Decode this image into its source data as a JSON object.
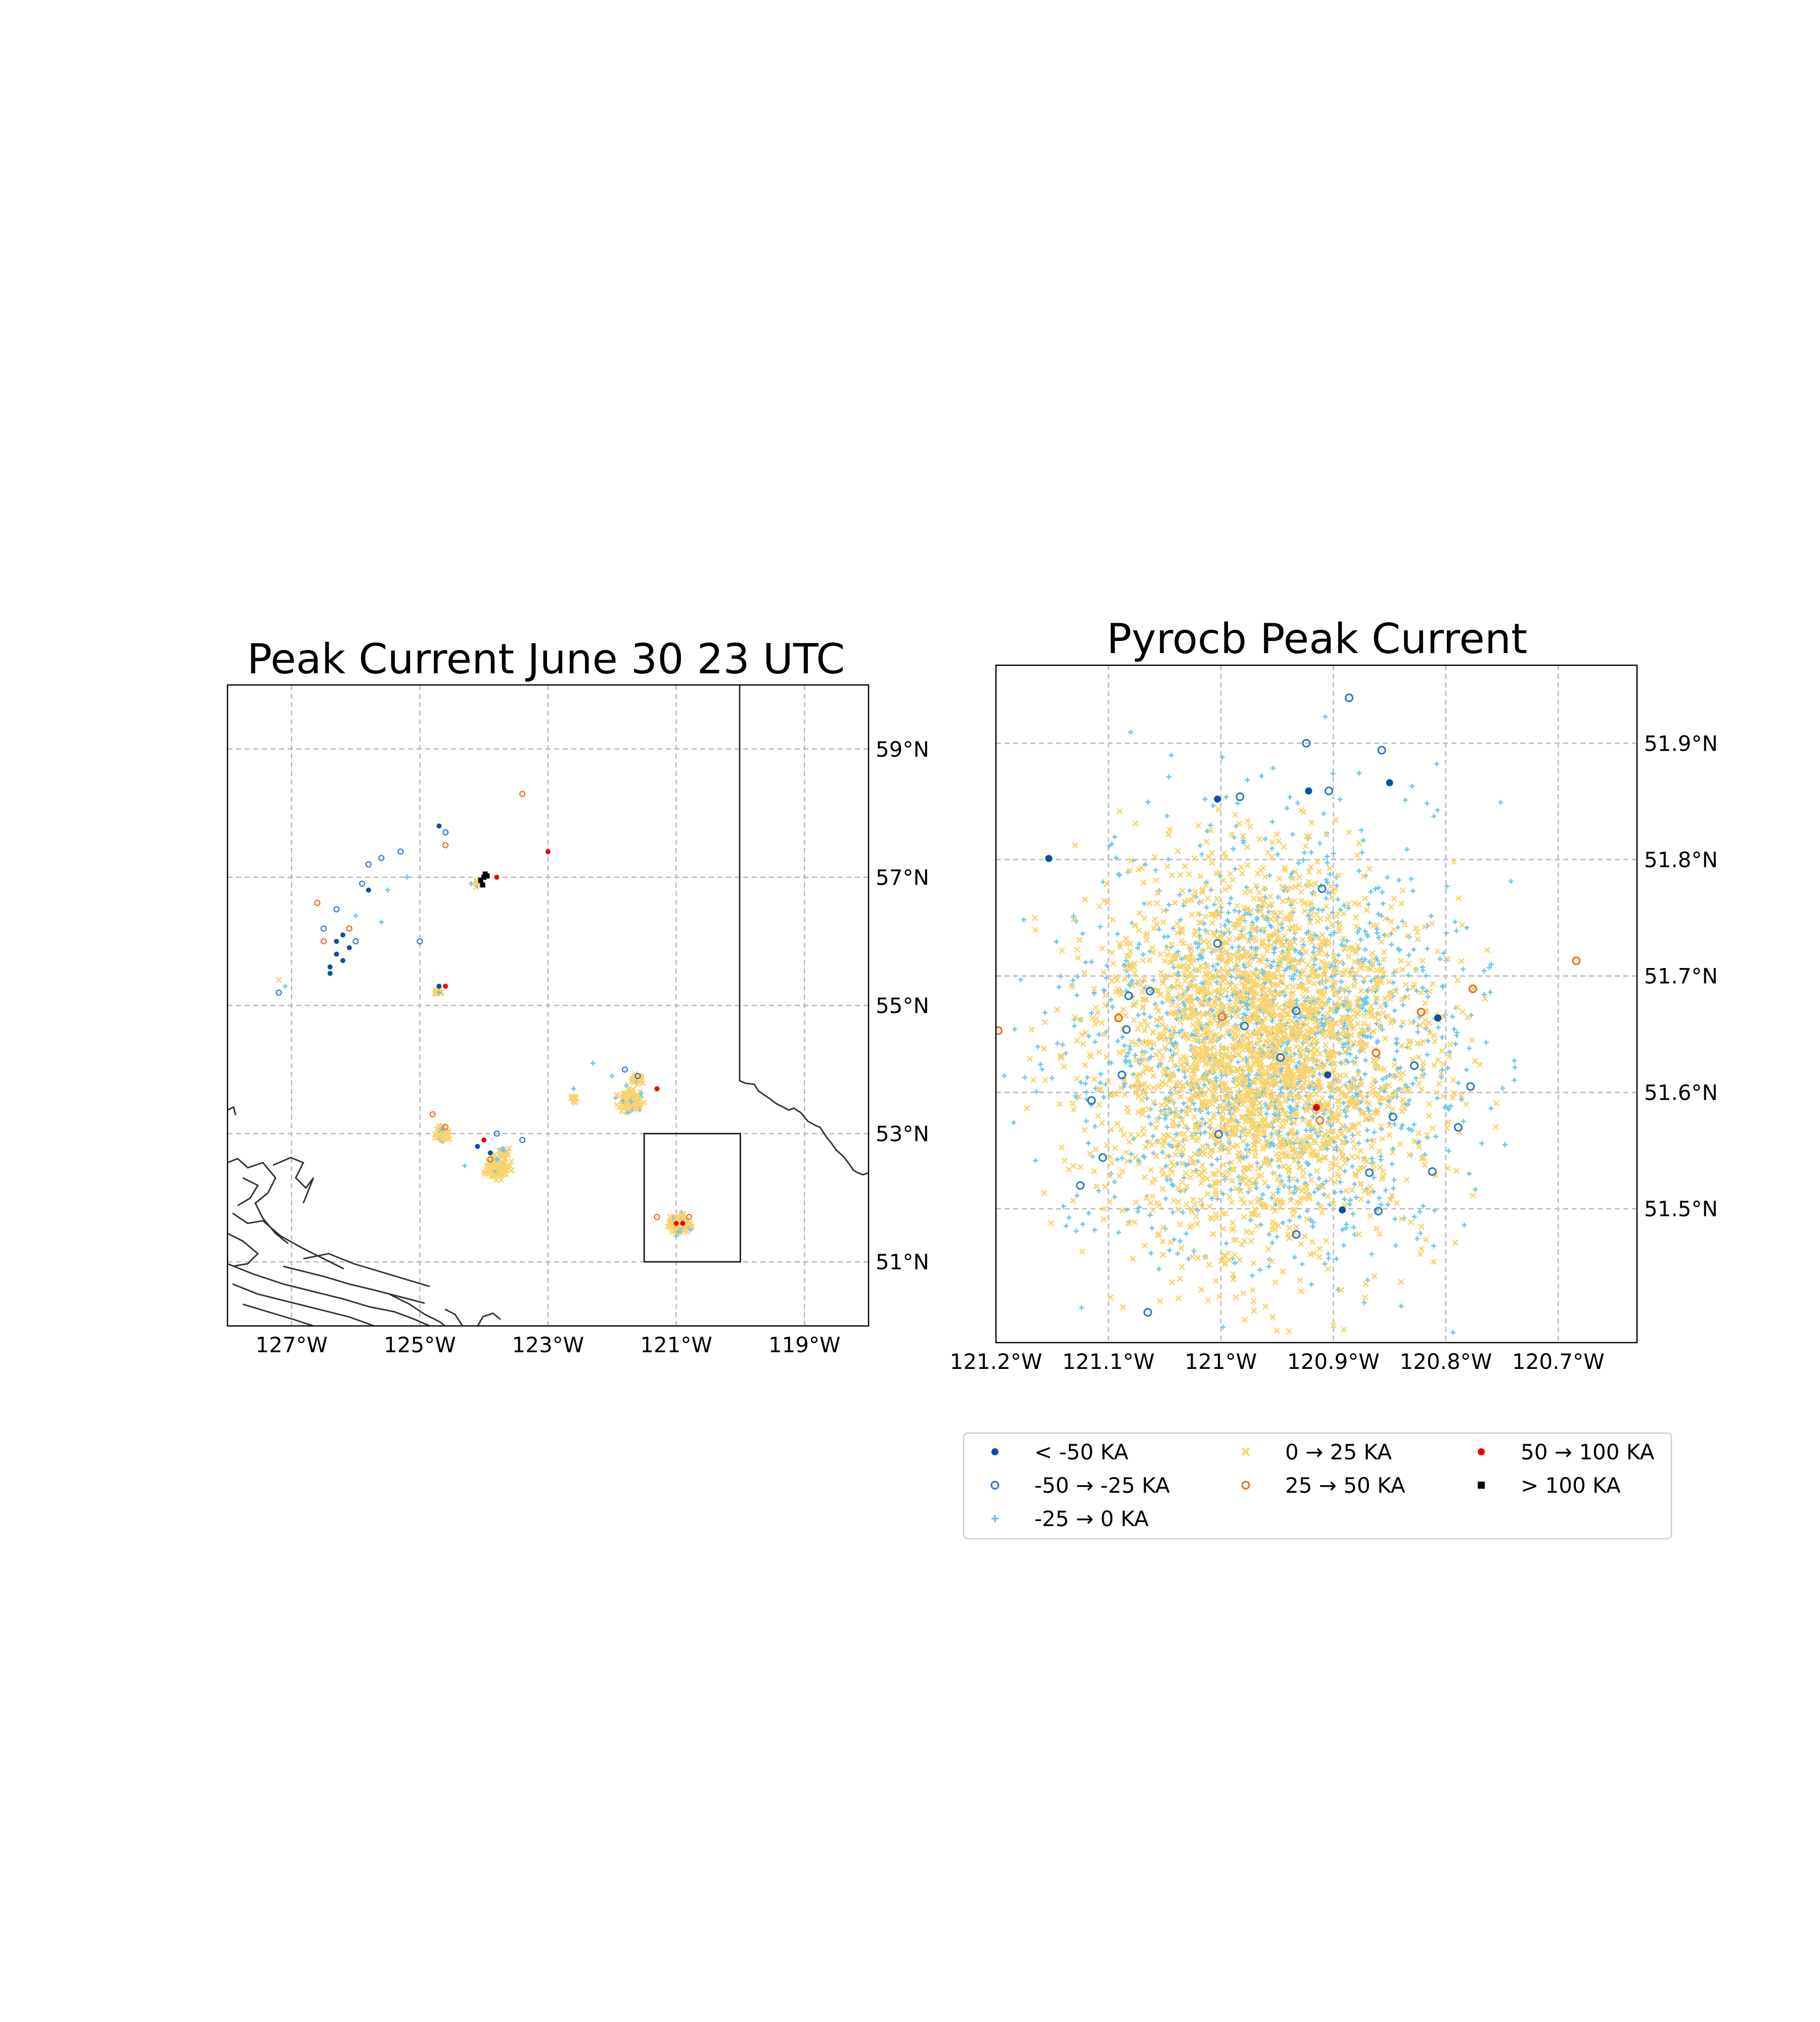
{
  "chart_data": [
    {
      "type": "scatter",
      "title": "Peak Current June 30 23 UTC",
      "x_tick_labels": [
        "127°W",
        "125°W",
        "123°W",
        "121°W",
        "119°W"
      ],
      "x_ticks": [
        -127,
        -125,
        -123,
        -121,
        -119
      ],
      "y_tick_labels": [
        "59°N",
        "57°N",
        "55°N",
        "53°N",
        "51°N"
      ],
      "y_ticks": [
        59,
        57,
        55,
        53,
        51
      ],
      "xlim": [
        -128,
        -118
      ],
      "ylim": [
        50,
        60
      ],
      "grid": true,
      "inset_box": {
        "lon_min": -121.5,
        "lon_max": -120,
        "lat_min": 51,
        "lat_max": 53
      },
      "series": [
        {
          "name": "< -50 KA",
          "points": [
            [
              -126.3,
              56.0
            ],
            [
              -126.2,
              55.7
            ],
            [
              -126.4,
              55.6
            ],
            [
              -126.1,
              55.9
            ],
            [
              -126.3,
              55.8
            ],
            [
              -124.7,
              57.8
            ],
            [
              -125.8,
              56.8
            ],
            [
              -126.4,
              55.5
            ],
            [
              -123.9,
              52.7
            ],
            [
              -124.1,
              52.8
            ],
            [
              -126.2,
              56.1
            ],
            [
              -124.7,
              55.3
            ]
          ]
        },
        {
          "name": "-50 → -25 KA",
          "points": [
            [
              -126.3,
              56.5
            ],
            [
              -126.0,
              56.0
            ],
            [
              -125.6,
              57.3
            ],
            [
              -125.8,
              57.2
            ],
            [
              -125.3,
              57.4
            ],
            [
              -126.5,
              56.2
            ],
            [
              -125.9,
              56.9
            ],
            [
              -127.2,
              55.2
            ],
            [
              -124.6,
              57.7
            ],
            [
              -121.8,
              54.0
            ],
            [
              -123.4,
              52.9
            ],
            [
              -121.6,
              53.9
            ],
            [
              -125.0,
              56.0
            ],
            [
              -123.8,
              53.0
            ],
            [
              -126.1,
              56.2
            ]
          ]
        },
        {
          "name": "-25 → 0 KA",
          "points": [
            [
              -125.2,
              57.0
            ],
            [
              -125.5,
              56.8
            ],
            [
              -126.0,
              56.4
            ],
            [
              -125.6,
              56.3
            ],
            [
              -122.3,
              54.1
            ],
            [
              -122.0,
              53.9
            ],
            [
              -121.7,
              53.5
            ],
            [
              -127.1,
              55.3
            ],
            [
              -124.7,
              55.2
            ],
            [
              -123.8,
              52.6
            ],
            [
              -124.3,
              52.5
            ],
            [
              -121.0,
              51.4
            ],
            [
              -122.6,
              53.7
            ],
            [
              -124.2,
              56.9
            ]
          ]
        },
        {
          "name": "0 → 25 KA",
          "points": [
            [
              -127.2,
              55.4
            ],
            [
              -124.1,
              56.9
            ]
          ]
        },
        {
          "name": "25 → 50 KA",
          "points": [
            [
              -123.4,
              58.3
            ],
            [
              -126.6,
              56.6
            ],
            [
              -126.1,
              56.2
            ],
            [
              -124.8,
              53.3
            ],
            [
              -124.6,
              57.5
            ],
            [
              -126.5,
              56.0
            ],
            [
              -124.6,
              53.1
            ],
            [
              -121.3,
              51.7
            ],
            [
              -120.8,
              51.7
            ],
            [
              -123.9,
              52.6
            ]
          ]
        },
        {
          "name": "50 → 100 KA",
          "points": [
            [
              -123.0,
              57.4
            ],
            [
              -124.0,
              52.9
            ],
            [
              -123.8,
              57.0
            ],
            [
              -124.6,
              55.3
            ],
            [
              -121.3,
              53.7
            ],
            [
              -120.9,
              51.6
            ],
            [
              -121.0,
              51.6
            ]
          ]
        },
        {
          "name": "> 100 KA",
          "points": [
            [
              -124.0,
              57.0
            ],
            [
              -124.05,
              56.95
            ],
            [
              -123.98,
              57.05
            ],
            [
              -124.02,
              56.88
            ],
            [
              -123.95,
              57.02
            ]
          ]
        }
      ]
    },
    {
      "type": "scatter",
      "title": "Pyrocb Peak Current",
      "x_tick_labels": [
        "121.2°W",
        "121.1°W",
        "121°W",
        "120.9°W",
        "120.8°W",
        "120.7°W"
      ],
      "x_ticks": [
        -121.2,
        -121.1,
        -121.0,
        -120.9,
        -120.8,
        -120.7
      ],
      "y_tick_labels": [
        "51.9°N",
        "51.8°N",
        "51.7°N",
        "51.6°N",
        "51.5°N"
      ],
      "y_ticks": [
        51.9,
        51.8,
        51.7,
        51.6,
        51.5
      ],
      "xlim": [
        -121.2,
        -120.63
      ],
      "ylim": [
        51.385,
        51.967
      ],
      "grid": true,
      "series": [
        {
          "name": "< -50 KA",
          "points": [
            [
              -121.153,
              51.801
            ],
            [
              -121.003,
              51.852
            ],
            [
              -120.922,
              51.859
            ],
            [
              -120.85,
              51.866
            ],
            [
              -120.892,
              51.499
            ],
            [
              -120.807,
              51.664
            ],
            [
              -120.905,
              51.615
            ]
          ]
        },
        {
          "name": "-50 → -25 KA",
          "points": [
            [
              -120.886,
              51.939
            ],
            [
              -120.924,
              51.9
            ],
            [
              -120.983,
              51.854
            ],
            [
              -120.904,
              51.859
            ],
            [
              -120.857,
              51.894
            ],
            [
              -121.105,
              51.544
            ],
            [
              -121.088,
              51.615
            ],
            [
              -120.979,
              51.657
            ],
            [
              -121.003,
              51.728
            ],
            [
              -120.868,
              51.531
            ],
            [
              -120.778,
              51.605
            ],
            [
              -120.86,
              51.498
            ],
            [
              -121.115,
              51.593
            ],
            [
              -121.084,
              51.654
            ],
            [
              -121.063,
              51.687
            ],
            [
              -120.933,
              51.478
            ],
            [
              -120.789,
              51.57
            ],
            [
              -120.828,
              51.623
            ],
            [
              -121.125,
              51.52
            ],
            [
              -120.947,
              51.63
            ],
            [
              -121.082,
              51.683
            ],
            [
              -121.002,
              51.564
            ],
            [
              -120.847,
              51.579
            ],
            [
              -120.933,
              51.67
            ],
            [
              -120.812,
              51.532
            ],
            [
              -121.065,
              51.411
            ],
            [
              -120.91,
              51.775
            ]
          ]
        },
        {
          "name": "25 → 50 KA",
          "points": [
            [
              -121.198,
              51.653
            ],
            [
              -121.091,
              51.664
            ],
            [
              -120.999,
              51.665
            ],
            [
              -120.684,
              51.713
            ],
            [
              -120.822,
              51.669
            ],
            [
              -120.912,
              51.576
            ],
            [
              -120.862,
              51.634
            ],
            [
              -120.776,
              51.689
            ]
          ]
        },
        {
          "name": "50 → 100 KA",
          "points": [
            [
              -120.915,
              51.587
            ]
          ]
        },
        {
          "name": "> 100 KA",
          "points": []
        }
      ],
      "dense_series": [
        {
          "name": "-25 → 0 KA",
          "count": 1700,
          "center": [
            -120.955,
            51.64
          ],
          "spread": [
            0.082,
            0.087
          ],
          "x_range": [
            -121.2,
            -120.72
          ],
          "y_range": [
            51.39,
            51.94
          ]
        },
        {
          "name": "0 → 25 KA",
          "count": 2600,
          "center": [
            -120.965,
            51.635
          ],
          "spread": [
            0.072,
            0.082
          ],
          "x_range": [
            -121.18,
            -120.74
          ],
          "y_range": [
            51.39,
            51.85
          ]
        }
      ]
    }
  ],
  "legend": {
    "placement": "below-right",
    "entries": [
      {
        "label": "< -50 KA",
        "marker": "filled-circle",
        "color": "#0a4fa8"
      },
      {
        "label": "-50 → -25 KA",
        "marker": "open-circle",
        "color": "#2f77c1"
      },
      {
        "label": "-25 → 0 KA",
        "marker": "plus",
        "color": "#6ec6ea"
      },
      {
        "label": "0 → 25 KA",
        "marker": "x",
        "color": "#fbd36b"
      },
      {
        "label": "25 → 50 KA",
        "marker": "open-circle",
        "color": "#f46a1c"
      },
      {
        "label": "> 100 KA",
        "marker": "square",
        "color": "#000000"
      },
      {
        "label": "50 → 100 KA",
        "marker": "filled-circle",
        "color": "#f00000"
      }
    ]
  },
  "colors": {
    "neg50": "#0a4fa8",
    "neg25": "#2f77c1",
    "neg0": "#6ec6ea",
    "pos25": "#fbd36b",
    "pos50": "#f46a1c",
    "pos100": "#f00000",
    "over100": "#000000",
    "grid": "#b8b8b8",
    "coast": "#333333"
  }
}
